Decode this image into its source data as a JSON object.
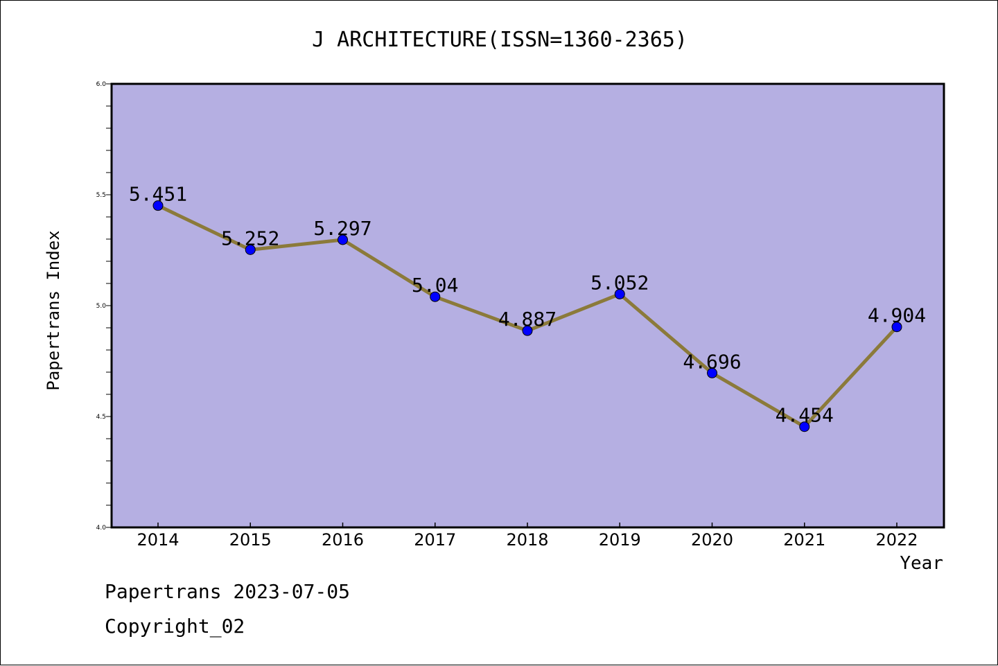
{
  "chart_data": {
    "type": "line",
    "title": "J ARCHITECTURE(ISSN=1360-2365)",
    "xlabel": "Year",
    "ylabel": "Papertrans Index",
    "categories": [
      "2014",
      "2015",
      "2016",
      "2017",
      "2018",
      "2019",
      "2020",
      "2021",
      "2022"
    ],
    "values": [
      5.451,
      5.252,
      5.297,
      5.04,
      4.887,
      5.052,
      4.696,
      4.454,
      4.904
    ],
    "data_labels": [
      "5.451",
      "5.252",
      "5.297",
      "5.04",
      "4.887",
      "5.052",
      "4.696",
      "4.454",
      "4.904"
    ],
    "ylim": [
      4.0,
      6.0
    ],
    "yticks": [
      "4.0",
      "4.5",
      "5.0",
      "5.5",
      "6.0"
    ],
    "grid": false,
    "colors": {
      "plot_background": "#b5afe2",
      "line": "#8b7a3a",
      "marker": "#0000ff"
    }
  },
  "footer": {
    "line1": "Papertrans 2023-07-05",
    "line2": "Copyright_02"
  }
}
